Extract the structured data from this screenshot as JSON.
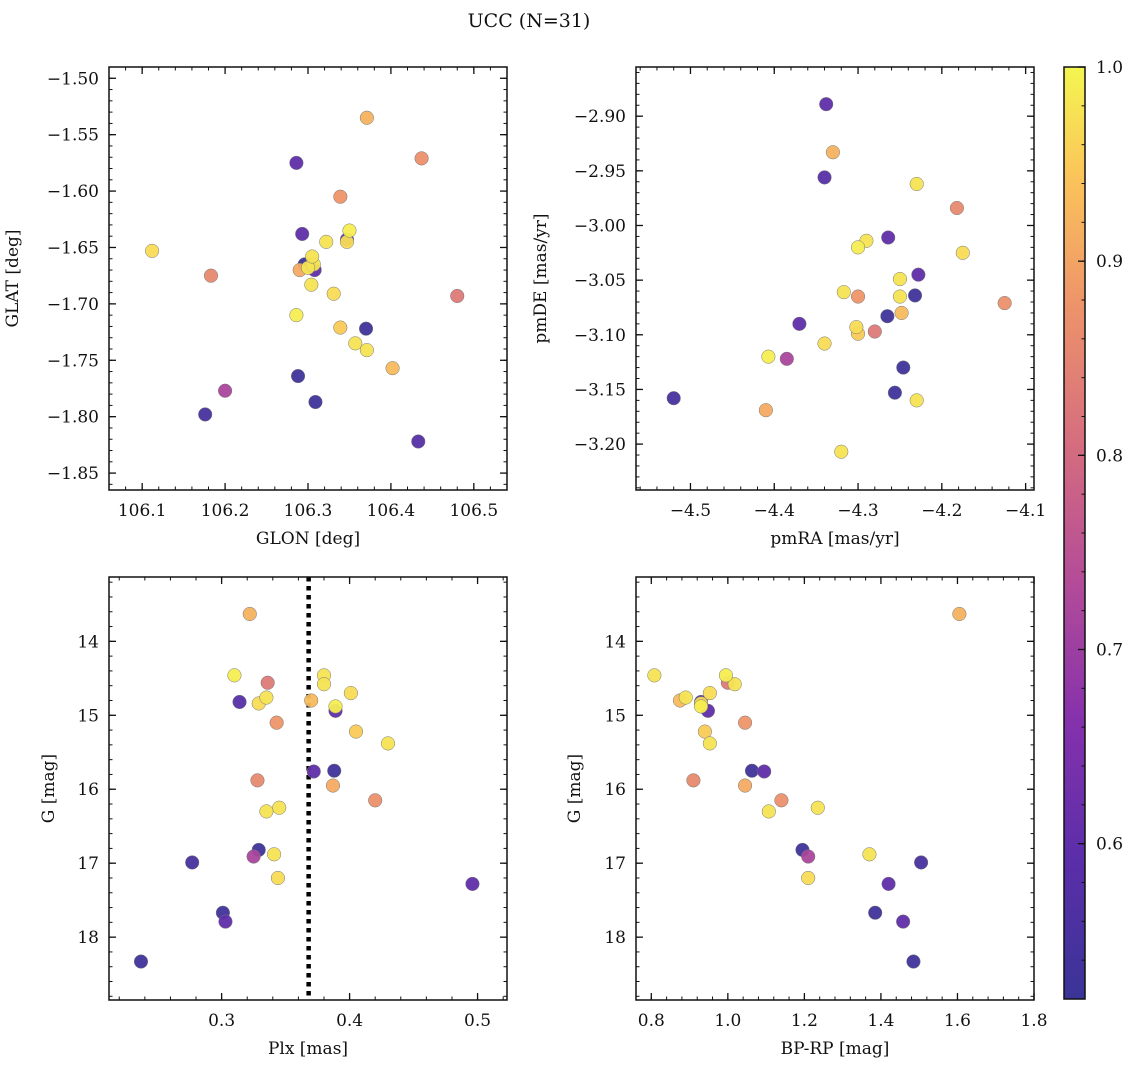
{
  "chart_data": {
    "type": "scatter",
    "title": "UCC (N=31)",
    "colormap": "plasma",
    "colorbar": {
      "vmin": 0.52,
      "vmax": 1.0,
      "ticks": [
        0.6,
        0.7,
        0.8,
        0.9,
        1.0
      ],
      "tick_labels": [
        "0.6",
        "0.7",
        "0.8",
        "0.9",
        "1.0"
      ]
    },
    "membership_probability": [
      0.55,
      0.99,
      0.88,
      0.98,
      0.99,
      0.98,
      0.6,
      0.6,
      0.72,
      0.97,
      0.98,
      0.58,
      0.98,
      0.98,
      0.53,
      0.93,
      0.95,
      0.97,
      0.86,
      0.97,
      0.98,
      0.87,
      0.53,
      0.53,
      0.53,
      0.6,
      0.6,
      0.83,
      0.92,
      0.91,
      0.98
    ],
    "panels": [
      {
        "xlabel": "GLON [deg]",
        "ylabel": "GLAT [deg]",
        "xlim": [
          106.06,
          106.54
        ],
        "ylim": [
          -1.865,
          -1.49
        ],
        "invert_y": false,
        "xticks": [
          106.1,
          106.2,
          106.3,
          106.4,
          106.5
        ],
        "xtick_labels": [
          "106.1",
          "106.2",
          "106.3",
          "106.4",
          "106.5"
        ],
        "yticks": [
          -1.85,
          -1.8,
          -1.75,
          -1.7,
          -1.65,
          -1.6,
          -1.55,
          -1.5
        ],
        "ytick_labels": [
          "−1.85",
          "−1.80",
          "−1.75",
          "−1.70",
          "−1.65",
          "−1.60",
          "−1.55",
          "−1.50"
        ],
        "x": [
          106.176,
          106.286,
          106.339,
          106.322,
          106.35,
          106.357,
          106.286,
          106.293,
          106.2,
          106.331,
          106.371,
          106.433,
          106.304,
          106.307,
          106.37,
          106.402,
          106.339,
          106.347,
          106.183,
          106.112,
          106.3,
          106.437,
          106.309,
          106.296,
          106.288,
          106.347,
          106.308,
          106.48,
          106.371,
          106.29,
          106.305
        ],
        "y": [
          -1.798,
          -1.71,
          -1.605,
          -1.645,
          -1.635,
          -1.735,
          -1.575,
          -1.638,
          -1.777,
          -1.691,
          -1.741,
          -1.822,
          -1.683,
          -1.665,
          -1.722,
          -1.757,
          -1.721,
          -1.645,
          -1.675,
          -1.653,
          -1.668,
          -1.571,
          -1.787,
          -1.665,
          -1.764,
          -1.643,
          -1.67,
          -1.693,
          -1.535,
          -1.67,
          -1.658
        ],
        "vline": null
      },
      {
        "xlabel": "pmRA [mas/yr]",
        "ylabel": "pmDE [mas/yr]",
        "xlim": [
          -4.565,
          -4.09
        ],
        "ylim": [
          -3.242,
          -2.855
        ],
        "invert_y": false,
        "xticks": [
          -4.5,
          -4.4,
          -4.3,
          -4.2,
          -4.1
        ],
        "xtick_labels": [
          "−4.5",
          "−4.4",
          "−4.3",
          "−4.2",
          "−4.1"
        ],
        "yticks": [
          -3.2,
          -3.15,
          -3.1,
          -3.05,
          -3.0,
          -2.95,
          -2.9
        ],
        "ytick_labels": [
          "−3.20",
          "−3.15",
          "−3.10",
          "−3.05",
          "−3.00",
          "−2.95",
          "−2.90"
        ],
        "x": [
          -4.52,
          -4.407,
          -4.3,
          -4.23,
          -4.3,
          -4.32,
          -4.37,
          -4.228,
          -4.385,
          -4.302,
          -4.29,
          -4.34,
          -4.23,
          -4.25,
          -4.246,
          -4.248,
          -4.3,
          -4.34,
          -4.182,
          -4.175,
          -4.25,
          -4.125,
          -4.256,
          -4.265,
          -4.232,
          -4.264,
          -4.338,
          -4.28,
          -4.33,
          -4.41,
          -4.317
        ],
        "y": [
          -3.158,
          -3.12,
          -3.065,
          -2.962,
          -3.02,
          -3.207,
          -3.09,
          -3.045,
          -3.122,
          -3.093,
          -3.014,
          -2.956,
          -3.16,
          -3.049,
          -3.13,
          -3.08,
          -3.099,
          -3.108,
          -2.984,
          -3.025,
          -3.065,
          -3.071,
          -3.153,
          -3.083,
          -3.064,
          -3.011,
          -2.889,
          -3.097,
          -2.933,
          -3.169,
          -3.061
        ]
      },
      {
        "xlabel": "Plx [mas]",
        "ylabel": "G [mag]",
        "xlim": [
          0.212,
          0.523
        ],
        "ylim": [
          18.85,
          13.13
        ],
        "invert_y": true,
        "xticks": [
          0.3,
          0.4,
          0.5
        ],
        "xtick_labels": [
          "0.3",
          "0.4",
          "0.5"
        ],
        "yticks": [
          14,
          15,
          16,
          17,
          18
        ],
        "ytick_labels": [
          "14",
          "15",
          "16",
          "17",
          "18"
        ],
        "x": [
          0.277,
          0.31,
          0.343,
          0.38,
          0.389,
          0.38,
          0.303,
          0.496,
          0.325,
          0.344,
          0.345,
          0.314,
          0.335,
          0.341,
          0.237,
          0.37,
          0.405,
          0.401,
          0.328,
          0.329,
          0.335,
          0.42,
          0.329,
          0.388,
          0.301,
          0.389,
          0.372,
          0.336,
          0.322,
          0.387,
          0.43
        ],
        "y": [
          16.99,
          14.46,
          15.1,
          14.46,
          14.88,
          14.58,
          17.79,
          17.28,
          16.91,
          17.2,
          16.25,
          14.82,
          16.3,
          16.88,
          18.33,
          14.8,
          15.22,
          14.7,
          15.88,
          14.84,
          14.76,
          16.15,
          16.82,
          15.75,
          17.67,
          14.94,
          15.76,
          14.56,
          13.63,
          15.95,
          15.38
        ],
        "vline": 0.368
      },
      {
        "xlabel": "BP-RP [mag]",
        "ylabel": "G [mag]",
        "xlim": [
          0.76,
          1.8
        ],
        "ylim": [
          18.85,
          13.13
        ],
        "invert_y": true,
        "xticks": [
          0.8,
          1.0,
          1.2,
          1.4,
          1.6,
          1.8
        ],
        "xtick_labels": [
          "0.8",
          "1.0",
          "1.2",
          "1.4",
          "1.6",
          "1.8"
        ],
        "yticks": [
          14,
          15,
          16,
          17,
          18
        ],
        "ytick_labels": [
          "14",
          "15",
          "16",
          "17",
          "18"
        ],
        "x": [
          1.505,
          0.995,
          1.045,
          0.808,
          0.93,
          1.018,
          1.458,
          1.42,
          1.21,
          1.21,
          1.235,
          0.93,
          1.107,
          1.37,
          1.485,
          0.875,
          0.94,
          0.953,
          0.91,
          0.93,
          0.89,
          1.14,
          1.195,
          1.063,
          1.385,
          0.948,
          1.095,
          1.0,
          1.605,
          1.045,
          0.953
        ],
        "y": [
          16.99,
          14.46,
          15.1,
          14.46,
          14.88,
          14.58,
          17.79,
          17.28,
          16.91,
          17.2,
          16.25,
          14.82,
          16.3,
          16.88,
          18.33,
          14.8,
          15.22,
          14.7,
          15.88,
          14.84,
          14.76,
          16.15,
          16.82,
          15.75,
          17.67,
          14.94,
          15.76,
          14.56,
          13.63,
          15.95,
          15.38
        ],
        "vline": null
      }
    ]
  }
}
